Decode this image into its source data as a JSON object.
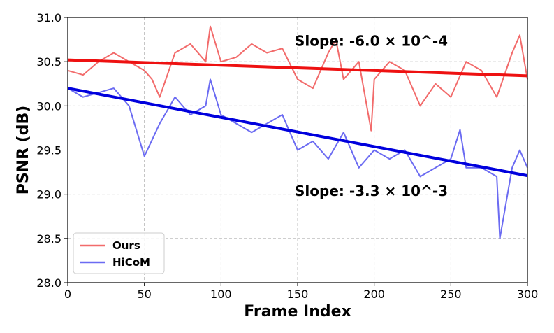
{
  "chart_data": {
    "type": "line",
    "xlabel": "Frame Index",
    "ylabel": "PSNR (dB)",
    "xlim": [
      0,
      300
    ],
    "ylim": [
      28.0,
      31.0
    ],
    "xticks": [
      0,
      50,
      100,
      150,
      200,
      250,
      300
    ],
    "yticks": [
      28.0,
      28.5,
      29.0,
      29.5,
      30.0,
      30.5,
      31.0
    ],
    "ytick_labels": [
      "28.0",
      "28.5",
      "29.0",
      "29.5",
      "30.0",
      "30.5",
      "31.0"
    ],
    "grid": true,
    "legend_position": "bottom-left",
    "series": [
      {
        "name": "Ours",
        "color": "#f26b6b",
        "x": [
          0,
          10,
          20,
          30,
          40,
          50,
          55,
          60,
          70,
          80,
          90,
          93,
          100,
          110,
          120,
          130,
          140,
          150,
          160,
          170,
          175,
          180,
          190,
          198,
          200,
          210,
          220,
          230,
          240,
          250,
          260,
          270,
          280,
          290,
          295,
          300
        ],
        "y": [
          30.4,
          30.35,
          30.5,
          30.6,
          30.5,
          30.4,
          30.3,
          30.1,
          30.6,
          30.7,
          30.5,
          30.9,
          30.5,
          30.55,
          30.7,
          30.6,
          30.65,
          30.3,
          30.2,
          30.6,
          30.75,
          30.3,
          30.5,
          29.72,
          30.3,
          30.5,
          30.4,
          30.0,
          30.25,
          30.1,
          30.5,
          30.4,
          30.1,
          30.6,
          30.8,
          30.3
        ]
      },
      {
        "name": "HiCoM",
        "color": "#6b6bf2",
        "x": [
          0,
          10,
          20,
          30,
          40,
          50,
          60,
          70,
          80,
          90,
          93,
          100,
          110,
          120,
          130,
          140,
          150,
          160,
          170,
          180,
          190,
          200,
          210,
          220,
          230,
          240,
          250,
          256,
          260,
          270,
          280,
          282,
          290,
          295,
          300
        ],
        "y": [
          30.2,
          30.1,
          30.15,
          30.2,
          30.0,
          29.43,
          29.8,
          30.1,
          29.9,
          30.0,
          30.3,
          29.9,
          29.8,
          29.7,
          29.8,
          29.9,
          29.5,
          29.6,
          29.4,
          29.7,
          29.3,
          29.5,
          29.4,
          29.5,
          29.2,
          29.3,
          29.4,
          29.73,
          29.3,
          29.3,
          29.2,
          28.5,
          29.3,
          29.5,
          29.3
        ]
      }
    ],
    "trend_lines": [
      {
        "series": "Ours",
        "color": "#ee1111",
        "x": [
          0,
          300
        ],
        "y": [
          30.52,
          30.34
        ]
      },
      {
        "series": "HiCoM",
        "color": "#0000dd",
        "x": [
          0,
          300
        ],
        "y": [
          30.2,
          29.21
        ]
      }
    ],
    "annotations": [
      {
        "text": "Slope: -6.0 × 10^-4",
        "x": 150,
        "y": 30.68
      },
      {
        "text": "Slope: -3.3 × 10^-3",
        "x": 150,
        "y": 28.98
      }
    ]
  }
}
